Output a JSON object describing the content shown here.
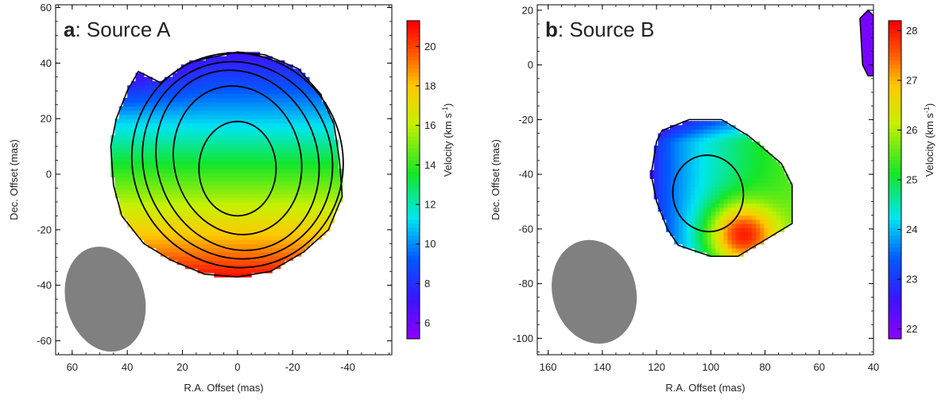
{
  "chart_data": [
    {
      "type": "heatmap",
      "panel_letter": "a",
      "title": ": Source A",
      "xlabel": "R.A. Offset (mas)",
      "ylabel": "Dec. Offset (mas)",
      "colorbar_label": "Velocity (km s",
      "colorbar_label_sup": "-1",
      "colorbar_label_end": ")",
      "xlim": [
        66,
        -56
      ],
      "ylim": [
        -65,
        61
      ],
      "xticks": [
        "60",
        "40",
        "20",
        "0",
        "-20",
        "-40"
      ],
      "xtick_values": [
        60,
        40,
        20,
        0,
        -20,
        -40
      ],
      "yticks": [
        "60",
        "40",
        "20",
        "0",
        "-20",
        "-40",
        "-60"
      ],
      "ytick_values": [
        60,
        40,
        20,
        0,
        -20,
        -40,
        -60
      ],
      "colorbar_range": [
        5.2,
        21.3
      ],
      "colorbar_ticks": [
        "6",
        "8",
        "10",
        "12",
        "14",
        "16",
        "18",
        "20"
      ],
      "colorbar_tick_values": [
        6,
        8,
        10,
        12,
        14,
        16,
        18,
        20
      ],
      "velocity_field": {
        "center": [
          0,
          3
        ],
        "gradient_direction": "north (blue/purple) to south (red)",
        "north_velocity": 7,
        "south_velocity": 21,
        "emission_outline": [
          [
            36,
            37
          ],
          [
            28,
            33
          ],
          [
            18,
            40
          ],
          [
            10,
            42
          ],
          [
            0,
            44
          ],
          [
            -10,
            43
          ],
          [
            -22,
            38
          ],
          [
            -30,
            29
          ],
          [
            -35,
            18
          ],
          [
            -37,
            5
          ],
          [
            -38,
            -8
          ],
          [
            -33,
            -20
          ],
          [
            -24,
            -28
          ],
          [
            -12,
            -35
          ],
          [
            0,
            -37
          ],
          [
            12,
            -36
          ],
          [
            24,
            -31
          ],
          [
            34,
            -25
          ],
          [
            42,
            -15
          ],
          [
            45,
            -4
          ],
          [
            46,
            10
          ],
          [
            44,
            20
          ],
          [
            40,
            30
          ]
        ]
      },
      "contours": [
        {
          "center": [
            0,
            2
          ],
          "rx": 14,
          "ry": 17,
          "rotation": 0
        },
        {
          "center": [
            0,
            5
          ],
          "rx": 23,
          "ry": 27,
          "rotation": -15
        },
        {
          "center": [
            0,
            5
          ],
          "rx": 29,
          "ry": 33,
          "rotation": -22
        },
        {
          "center": [
            0,
            5
          ],
          "rx": 34,
          "ry": 36,
          "rotation": -28
        },
        {
          "center": [
            0,
            5
          ],
          "rx": 38,
          "ry": 39,
          "rotation": -32
        }
      ],
      "beam": {
        "center": [
          48,
          -45
        ],
        "major": 16,
        "minor": 13,
        "rotation": 70,
        "color": "#808080"
      }
    },
    {
      "type": "heatmap",
      "panel_letter": "b",
      "title": ": Source B",
      "xlabel": "R.A. Offset (mas)",
      "ylabel": "Dec. Offset (mas)",
      "colorbar_label": "Velocity (km s",
      "colorbar_label_sup": "-1",
      "colorbar_label_end": ")",
      "xlim": [
        164,
        40
      ],
      "ylim": [
        -106,
        22
      ],
      "xticks": [
        "160",
        "140",
        "120",
        "100",
        "80",
        "60",
        "40"
      ],
      "xtick_values": [
        160,
        140,
        120,
        100,
        80,
        60,
        40
      ],
      "yticks": [
        "20",
        "0",
        "-20",
        "-40",
        "-60",
        "-80",
        "-100"
      ],
      "ytick_values": [
        20,
        0,
        -20,
        -40,
        -60,
        -80,
        -100
      ],
      "colorbar_range": [
        21.8,
        28.2
      ],
      "colorbar_ticks": [
        "22",
        "23",
        "24",
        "25",
        "26",
        "27",
        "28"
      ],
      "colorbar_tick_values": [
        22,
        23,
        24,
        25,
        26,
        27,
        28
      ],
      "velocity_field": {
        "west_velocity": 22.3,
        "east_velocity": 25.5,
        "peak_velocity": 28,
        "peak_position": [
          88,
          -62
        ],
        "emission_outline": [
          [
            120,
            -28
          ],
          [
            118,
            -24
          ],
          [
            108,
            -20
          ],
          [
            96,
            -20
          ],
          [
            86,
            -26
          ],
          [
            74,
            -36
          ],
          [
            70,
            -44
          ],
          [
            70,
            -58
          ],
          [
            80,
            -64
          ],
          [
            90,
            -70
          ],
          [
            100,
            -70
          ],
          [
            112,
            -66
          ],
          [
            116,
            -60
          ],
          [
            120,
            -50
          ],
          [
            122,
            -40
          ]
        ],
        "edge_patch": {
          "outline": [
            [
              45,
              17
            ],
            [
              42,
              20
            ],
            [
              40,
              18
            ],
            [
              40,
              -4
            ],
            [
              42,
              -4
            ],
            [
              44,
              0
            ]
          ],
          "velocity": 22
        }
      },
      "contours": [
        {
          "center": [
            101,
            -47
          ],
          "rx": 13,
          "ry": 14,
          "rotation": -10
        }
      ],
      "beam": {
        "center": [
          143,
          -83
        ],
        "major": 16,
        "minor": 14,
        "rotation": 70,
        "color": "#808080"
      }
    }
  ]
}
